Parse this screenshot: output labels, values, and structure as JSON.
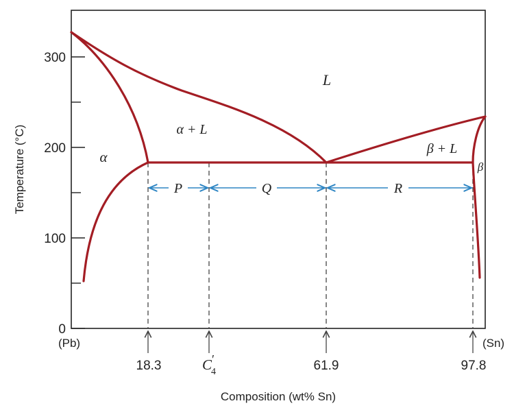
{
  "axes": {
    "y_label": "Temperature (°C)",
    "x_label": "Composition (wt% Sn)",
    "y_ticks": [
      "0",
      "100",
      "200",
      "300"
    ],
    "x_left_end": "(Pb)",
    "x_right_end": "(Sn)"
  },
  "regions": {
    "liquid": "L",
    "alpha_liquid": "α + L",
    "alpha": "α",
    "beta_liquid": "β + L",
    "beta": "β"
  },
  "tie_line_segments": {
    "p": "P",
    "q": "Q",
    "r": "R"
  },
  "compositions": {
    "c1": "18.3",
    "c2_base": "C",
    "c2_sub": "4",
    "c2_prime": "′",
    "c3": "61.9",
    "c4": "97.8"
  },
  "colors": {
    "phase_boundary": "#a31d24",
    "tie_arrow": "#2f86c4",
    "frame": "#222222",
    "dashed": "#444444"
  }
}
